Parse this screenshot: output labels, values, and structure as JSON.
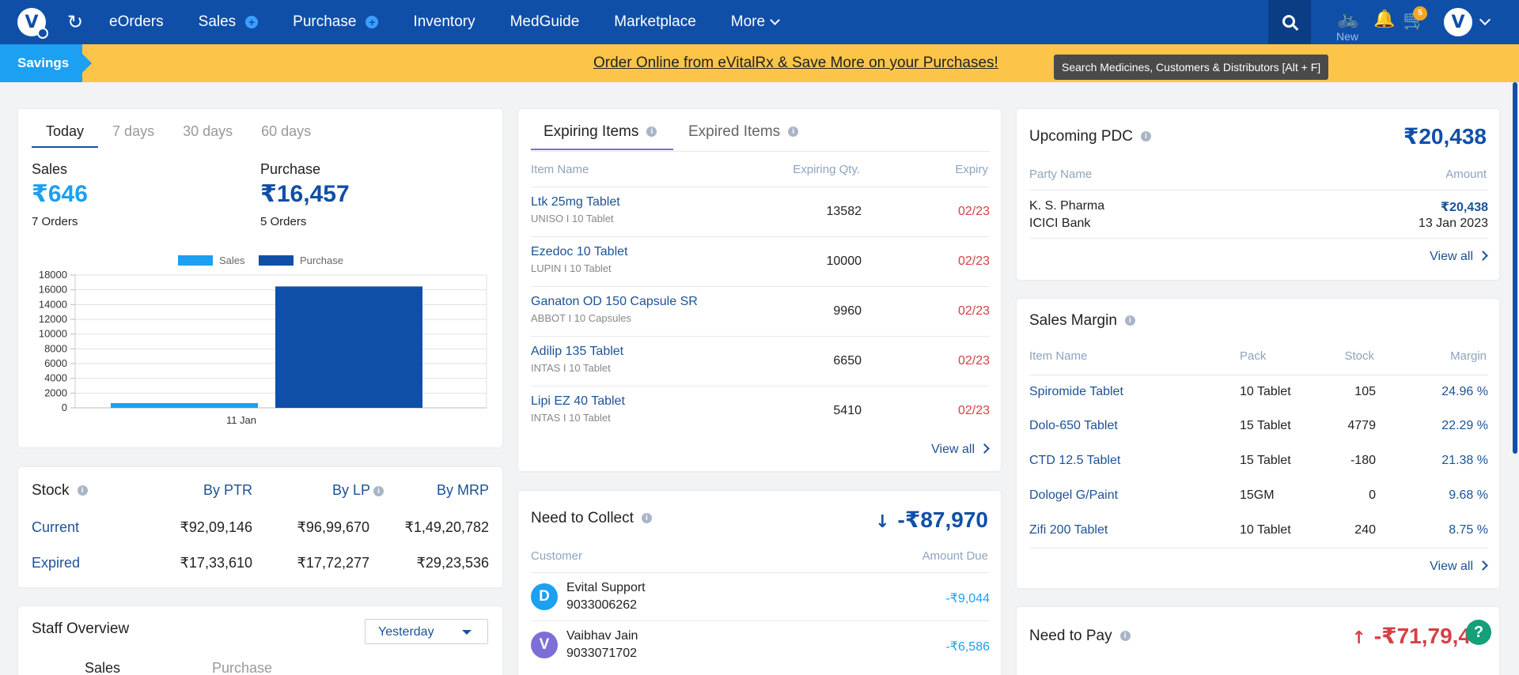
{
  "nav": {
    "items": [
      "eOrders",
      "Sales",
      "Purchase",
      "Inventory",
      "MedGuide",
      "Marketplace",
      "More"
    ],
    "new_label": "New",
    "cart_count": "5"
  },
  "banner": {
    "savings_label": "Savings",
    "text": "Order Online from eVitalRx & Save More on your Purchases!",
    "tooltip": "Search Medicines, Customers & Distributors [Alt + F]"
  },
  "summary": {
    "tabs": [
      "Today",
      "7 days",
      "30 days",
      "60 days"
    ],
    "sales_label": "Sales",
    "sales_value": "₹646",
    "sales_orders": "7 Orders",
    "purchase_label": "Purchase",
    "purchase_value": "₹16,457",
    "purchase_orders": "5 Orders"
  },
  "chart_data": {
    "type": "bar",
    "categories": [
      "11 Jan"
    ],
    "series": [
      {
        "name": "Sales",
        "values": [
          646
        ],
        "color": "#1ba0f2"
      },
      {
        "name": "Purchase",
        "values": [
          16457
        ],
        "color": "#0f4fa8"
      }
    ],
    "yticks": [
      0,
      2000,
      4000,
      6000,
      8000,
      10000,
      12000,
      14000,
      16000,
      18000
    ],
    "ylim": [
      0,
      18000
    ],
    "legend": "top",
    "grid": true
  },
  "stock": {
    "title": "Stock",
    "cols": [
      "By PTR",
      "By LP",
      "By MRP"
    ],
    "rows": [
      {
        "label": "Current",
        "values": [
          "₹92,09,146",
          "₹96,99,670",
          "₹1,49,20,782"
        ]
      },
      {
        "label": "Expired",
        "values": [
          "₹17,33,610",
          "₹17,72,277",
          "₹29,23,536"
        ]
      }
    ]
  },
  "staff": {
    "title": "Staff Overview",
    "select_value": "Yesterday",
    "tabs": [
      "Sales",
      "Purchase"
    ]
  },
  "expiring": {
    "tabs": [
      "Expiring Items",
      "Expired Items"
    ],
    "headers": [
      "Item Name",
      "Expiring Qty.",
      "Expiry"
    ],
    "rows": [
      {
        "name": "Ltk 25mg Tablet",
        "sub": "UNISO  I  10 Tablet",
        "qty": "13582",
        "exp": "02/23"
      },
      {
        "name": "Ezedoc 10 Tablet",
        "sub": "LUPIN  I  10 Tablet",
        "qty": "10000",
        "exp": "02/23"
      },
      {
        "name": "Ganaton OD 150 Capsule SR",
        "sub": "ABBOT  I  10 Capsules",
        "qty": "9960",
        "exp": "02/23"
      },
      {
        "name": "Adilip 135 Tablet",
        "sub": "INTAS  I  10 Tablet",
        "qty": "6650",
        "exp": "02/23"
      },
      {
        "name": "Lipi EZ 40 Tablet",
        "sub": "INTAS  I  10 Tablet",
        "qty": "5410",
        "exp": "02/23"
      }
    ],
    "view_all": "View all"
  },
  "collect": {
    "title": "Need to Collect",
    "total": "-₹87,970",
    "headers": [
      "Customer",
      "Amount Due"
    ],
    "rows": [
      {
        "initial": "D",
        "name": "Evital Support",
        "phone": "9033006262",
        "amount": "-₹9,044",
        "color": "#1ba0f2"
      },
      {
        "initial": "V",
        "name": "Vaibhav Jain",
        "phone": "9033071702",
        "amount": "-₹6,586",
        "color": "#7b6fd6"
      }
    ]
  },
  "pdc": {
    "title": "Upcoming PDC",
    "total": "₹20,438",
    "headers": [
      "Party Name",
      "Amount"
    ],
    "party": "K. S. Pharma",
    "bank": "ICICI Bank",
    "amount": "₹20,438",
    "date": "13 Jan 2023",
    "view_all": "View all"
  },
  "margin": {
    "title": "Sales Margin",
    "headers": [
      "Item Name",
      "Pack",
      "Stock",
      "Margin"
    ],
    "rows": [
      {
        "name": "Spiromide Tablet",
        "pack": "10 Tablet",
        "stock": "105",
        "margin": "24.96 %"
      },
      {
        "name": "Dolo-650 Tablet",
        "pack": "15 Tablet",
        "stock": "4779",
        "margin": "22.29 %"
      },
      {
        "name": "CTD 12.5 Tablet",
        "pack": "15 Tablet",
        "stock": "-180",
        "margin": "21.38 %"
      },
      {
        "name": "Dologel G/Paint",
        "pack": "15GM",
        "stock": "0",
        "margin": "9.68 %"
      },
      {
        "name": "Zifi 200 Tablet",
        "pack": "10 Tablet",
        "stock": "240",
        "margin": "8.75 %"
      }
    ],
    "view_all": "View all"
  },
  "pay": {
    "title": "Need to Pay",
    "total": "-₹71,79,4"
  },
  "help_label": "?"
}
